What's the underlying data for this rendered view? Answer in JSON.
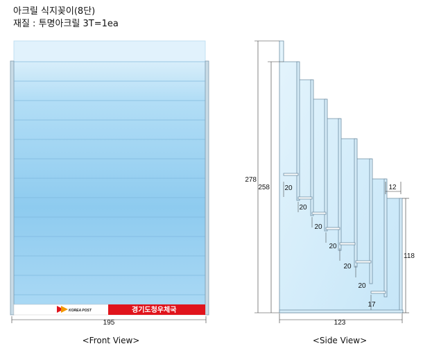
{
  "title": {
    "line1": "아크릴 식지꽂이(8단)",
    "line2": "재질 : 투명아크릴 3T=1ea"
  },
  "front_view": {
    "caption": "<Front View>",
    "width_label": "195",
    "banner": {
      "logo_text": "KOREA POST",
      "text": "경기도청우체국",
      "color": "#e0141c"
    },
    "panel_color_light": "#d4ecf9",
    "panel_color_dark": "#8cc8ef"
  },
  "side_view": {
    "caption": "<Side View>",
    "dimensions": {
      "total_height": "278",
      "back_height": "258",
      "step_labels": [
        "20",
        "20",
        "20",
        "20",
        "20",
        "20"
      ],
      "last_step": "17",
      "shelf_depth": "12",
      "front_height": "118",
      "base_width": "123"
    }
  }
}
